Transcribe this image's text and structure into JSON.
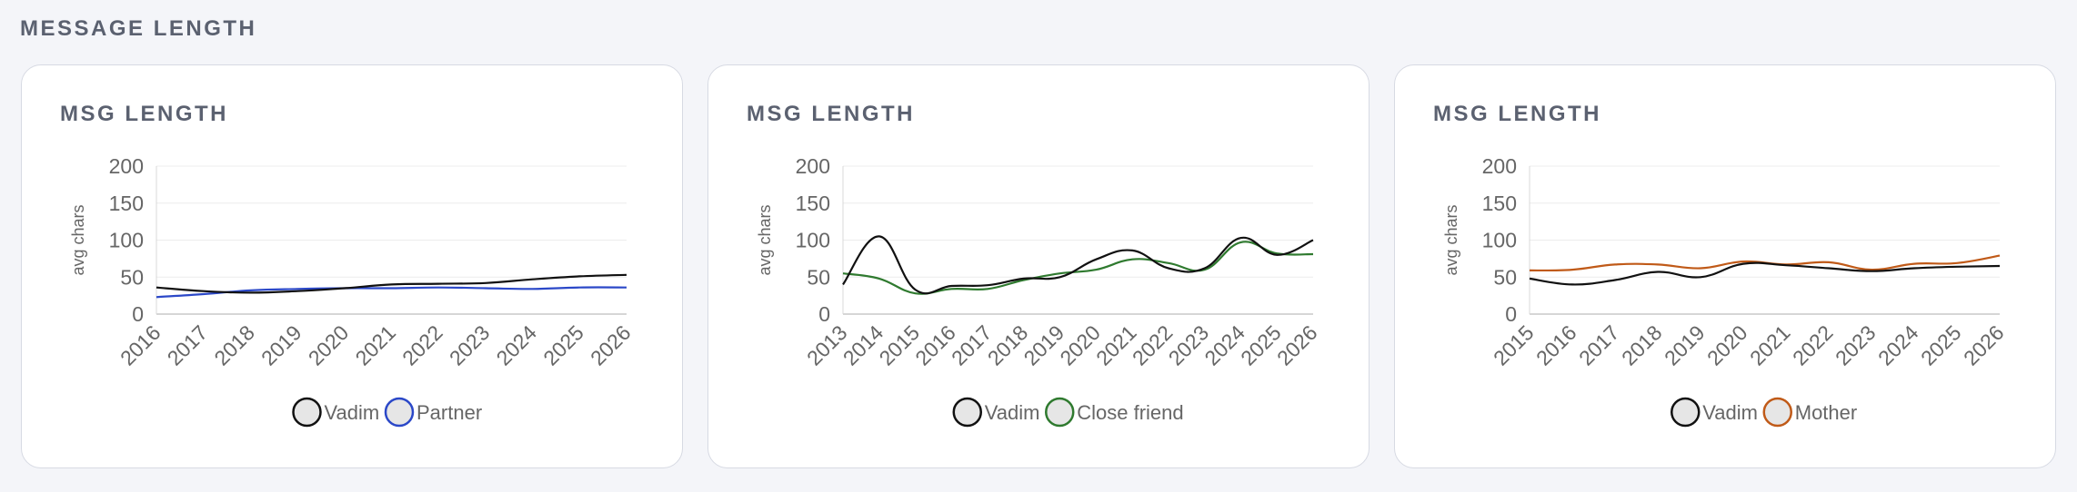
{
  "section_title": "MESSAGE LENGTH",
  "charts": [
    {
      "title": "MSG LENGTH",
      "chart_data": {
        "type": "line",
        "ylabel": "avg chars",
        "ylim": [
          0,
          200
        ],
        "yticks": [
          0,
          50,
          100,
          150,
          200
        ],
        "x": [
          "2016",
          "2017",
          "2018",
          "2019",
          "2020",
          "2021",
          "2022",
          "2023",
          "2024",
          "2025",
          "2026"
        ],
        "series": [
          {
            "name": "Vadim",
            "color": "#111111",
            "values": [
              36,
              31,
              29,
              31,
              35,
              40,
              41,
              42,
              47,
              51,
              53
            ]
          },
          {
            "name": "Partner",
            "color": "#2b48c8",
            "values": [
              23,
              27,
              32,
              34,
              35,
              35,
              36,
              35,
              34,
              36,
              36
            ]
          }
        ],
        "grid": true,
        "legend": "bottom"
      }
    },
    {
      "title": "MSG LENGTH",
      "chart_data": {
        "type": "line",
        "ylabel": "avg chars",
        "ylim": [
          0,
          200
        ],
        "yticks": [
          0,
          50,
          100,
          150,
          200
        ],
        "x": [
          "2013",
          "2014",
          "2015",
          "2016",
          "2017",
          "2018",
          "2019",
          "2020",
          "2021",
          "2022",
          "2023",
          "2024",
          "2025",
          "2026"
        ],
        "series": [
          {
            "name": "Vadim",
            "color": "#111111",
            "values": [
              40,
              105,
              33,
              38,
              39,
              48,
              50,
              74,
              86,
              62,
              62,
              103,
              80,
              100
            ]
          },
          {
            "name": "Close friend",
            "color": "#2f7a2f",
            "values": [
              55,
              48,
              28,
              34,
              34,
              46,
              55,
              60,
              74,
              69,
              60,
              97,
              82,
              81
            ]
          }
        ],
        "grid": true,
        "legend": "bottom"
      }
    },
    {
      "title": "MSG LENGTH",
      "chart_data": {
        "type": "line",
        "ylabel": "avg chars",
        "ylim": [
          0,
          200
        ],
        "yticks": [
          0,
          50,
          100,
          150,
          200
        ],
        "x": [
          "2015",
          "2016",
          "2017",
          "2018",
          "2019",
          "2020",
          "2021",
          "2022",
          "2023",
          "2024",
          "2025",
          "2026"
        ],
        "series": [
          {
            "name": "Vadim",
            "color": "#111111",
            "values": [
              48,
              40,
              46,
              57,
              50,
              68,
              66,
              62,
              58,
              62,
              64,
              65
            ]
          },
          {
            "name": "Mother",
            "color": "#c05a18",
            "values": [
              59,
              60,
              67,
              67,
              62,
              71,
              67,
              70,
              60,
              68,
              69,
              79
            ]
          }
        ],
        "grid": true,
        "legend": "bottom"
      }
    }
  ]
}
